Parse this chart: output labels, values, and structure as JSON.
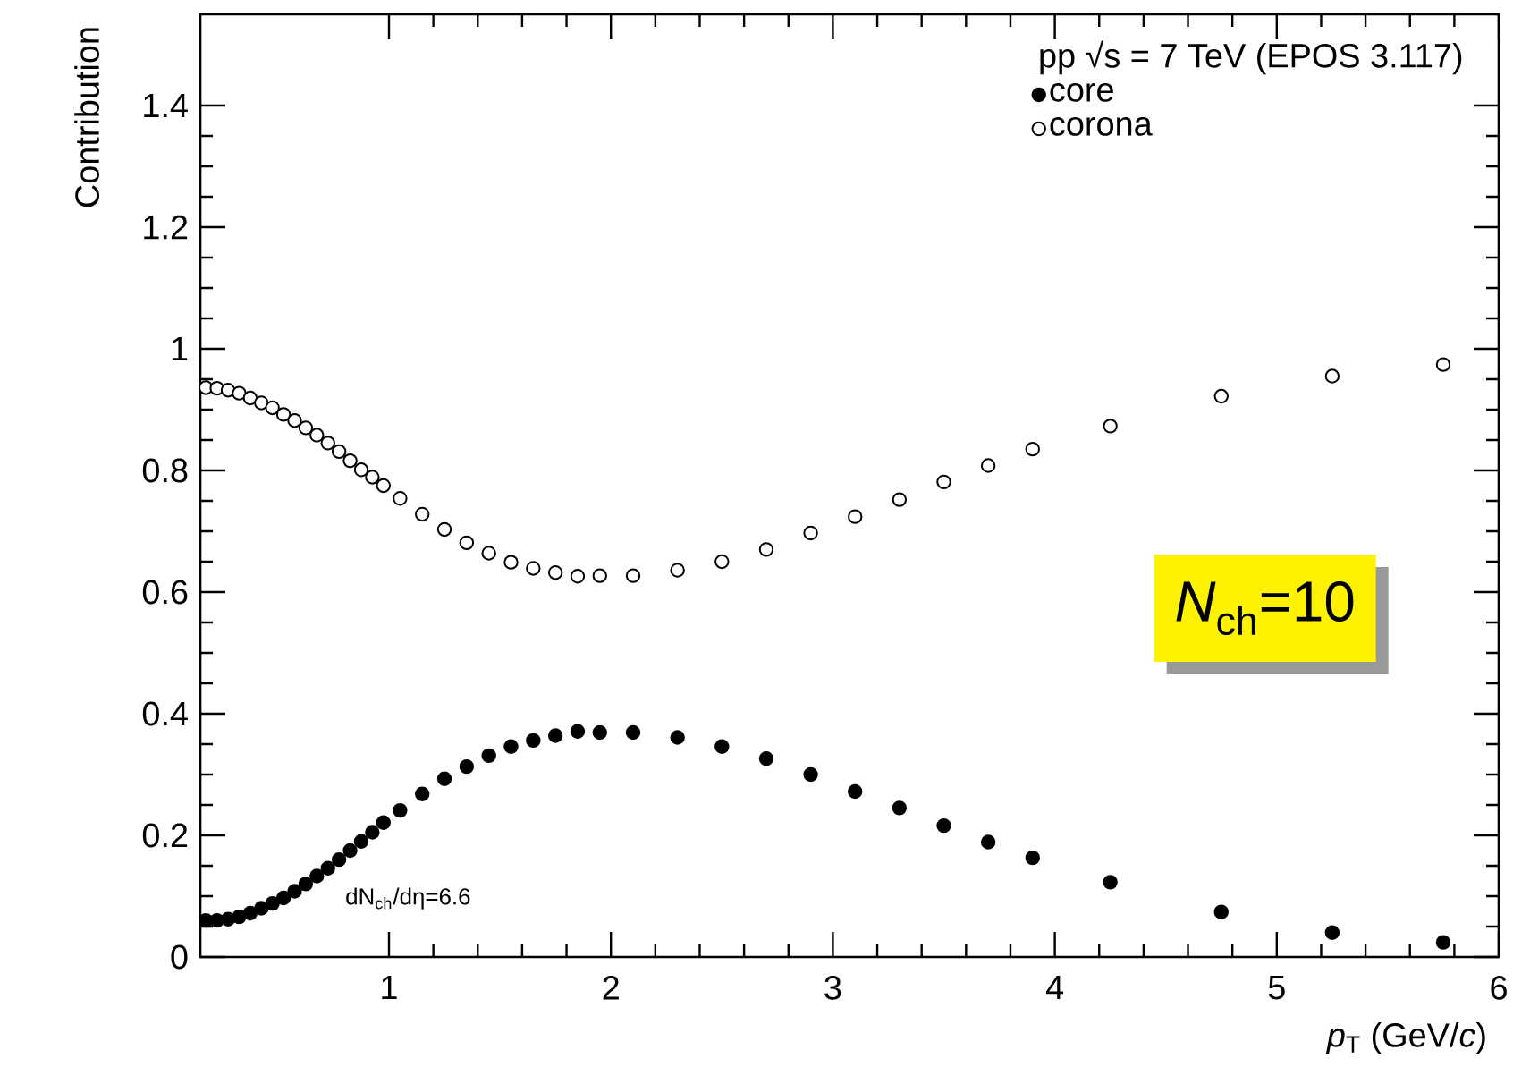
{
  "chart_data": {
    "type": "scatter",
    "ylabel": "Contribution",
    "xlabel": "*p*$_{T}$ (GeV/*c*)",
    "legend_title": "pp √s = 7 TeV (EPOS 3.117)",
    "annotations": [
      "*N*$_{ch}$=10",
      "dN$_{ch}$/dη=6.6"
    ],
    "x": [
      0.175,
      0.225,
      0.275,
      0.325,
      0.375,
      0.425,
      0.475,
      0.525,
      0.575,
      0.625,
      0.675,
      0.725,
      0.775,
      0.825,
      0.875,
      0.925,
      0.975,
      1.05,
      1.15,
      1.25,
      1.35,
      1.45,
      1.55,
      1.65,
      1.75,
      1.85,
      1.95,
      2.1,
      2.3,
      2.5,
      2.7,
      2.9,
      3.1,
      3.3,
      3.5,
      3.7,
      3.9,
      4.25,
      4.75,
      5.25,
      5.75
    ],
    "series": [
      {
        "name": "core",
        "color": "#000000",
        "values": [
          0.06,
          0.06,
          0.062,
          0.066,
          0.072,
          0.08,
          0.088,
          0.097,
          0.108,
          0.12,
          0.133,
          0.146,
          0.16,
          0.175,
          0.19,
          0.205,
          0.221,
          0.241,
          0.268,
          0.293,
          0.313,
          0.331,
          0.346,
          0.356,
          0.364,
          0.371,
          0.369,
          0.369,
          0.361,
          0.346,
          0.326,
          0.3,
          0.272,
          0.245,
          0.216,
          0.189,
          0.163,
          0.123,
          0.074,
          0.04,
          0.024
        ]
      },
      {
        "name": "corona",
        "color": "#000000",
        "values": [
          0.936,
          0.935,
          0.932,
          0.927,
          0.919,
          0.911,
          0.903,
          0.892,
          0.882,
          0.87,
          0.858,
          0.845,
          0.831,
          0.816,
          0.801,
          0.789,
          0.775,
          0.754,
          0.728,
          0.703,
          0.681,
          0.664,
          0.649,
          0.639,
          0.632,
          0.626,
          0.627,
          0.627,
          0.636,
          0.65,
          0.67,
          0.697,
          0.724,
          0.752,
          0.781,
          0.808,
          0.835,
          0.873,
          0.922,
          0.955,
          0.974
        ]
      }
    ],
    "xlim": [
      0.15,
      6
    ],
    "ylim": [
      0,
      1.55
    ],
    "xticks": [
      1,
      2,
      3,
      4,
      5,
      6
    ],
    "yticks": [
      0,
      0.2,
      0.4,
      0.6,
      0.8,
      1,
      1.2,
      1.4
    ],
    "marker": "circle",
    "legend": "top right"
  }
}
